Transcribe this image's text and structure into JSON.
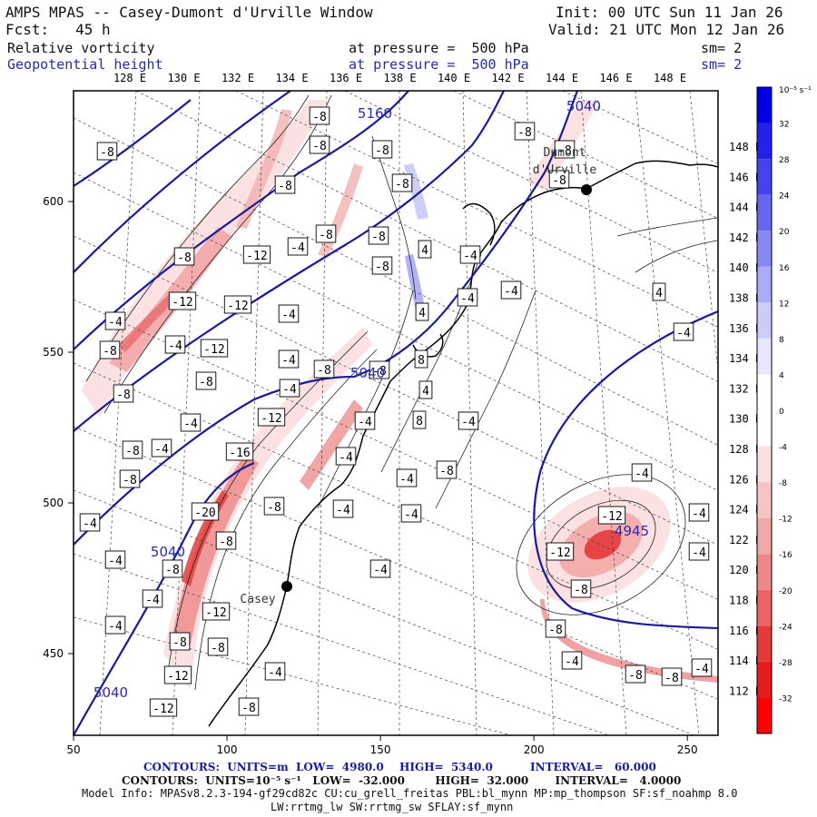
{
  "header": {
    "title": "AMPS MPAS -- Casey-Dumont d'Urville Window",
    "forecast": "Fcst:   45 h",
    "init": "Init: 00 UTC Sun 11 Jan 26",
    "valid": "Valid: 21 UTC Mon 12 Jan 26",
    "field1": {
      "name": "Relative vorticity",
      "level": "at pressure =  500 hPa",
      "smooth": "sm= 2"
    },
    "field2": {
      "name": "Geopotential height",
      "level": "at pressure =  500 hPa",
      "smooth": "sm= 2"
    }
  },
  "axes": {
    "x_ticks": [
      "50",
      "100",
      "150",
      "200",
      "250"
    ],
    "y_ticks": [
      "600",
      "550",
      "500",
      "450"
    ],
    "top_lon_labels": [
      "128 E",
      "130 E",
      "132 E",
      "134 E",
      "136 E",
      "138 E",
      "140 E",
      "142 E",
      "144 E",
      "146 E",
      "148 E"
    ],
    "right_lon_labels": [
      "148 E",
      "146 E",
      "144 E",
      "142 E",
      "140 E",
      "138 E",
      "136 E",
      "134 E",
      "132 E",
      "130 E",
      "128 E",
      "126 E",
      "124 E",
      "122 E",
      "120 E",
      "118 E",
      "116 E",
      "114 E",
      "112 E"
    ]
  },
  "colorbar": {
    "unit": "10⁻⁵ s⁻¹",
    "labels": [
      "32",
      "28",
      "24",
      "20",
      "16",
      "12",
      "8",
      "4",
      "0",
      "-4",
      "-8",
      "-12",
      "-16",
      "-20",
      "-24",
      "-28",
      "-32"
    ],
    "colors": [
      "#0000e6",
      "#2222ea",
      "#4444ee",
      "#6666f0",
      "#8888f4",
      "#aaaaf6",
      "#ccccfa",
      "#e6e6fc",
      "#ffffff",
      "#ffffff",
      "#fbe0e0",
      "#f7c4c4",
      "#f3a8a8",
      "#ee8888",
      "#ea6464",
      "#e63a3a",
      "#e41c1c",
      "#ff0000"
    ]
  },
  "places": [
    {
      "name": "Dumont d'Urville",
      "label_lines": [
        "Dumont",
        "d'Urville"
      ]
    },
    {
      "name": "Casey",
      "label_lines": [
        "Casey"
      ]
    }
  ],
  "height_labels": [
    "5160",
    "5040",
    "5040",
    "5040",
    "5040",
    "4945"
  ],
  "vorticity_labels": [
    "-4",
    "-8",
    "-12",
    "-16",
    "-20",
    "4",
    "8"
  ],
  "footer": {
    "line1_a": "CONTOURS:  UNITS=m  LOW=  4980.0",
    "line1_b": "HIGH=  5340.0",
    "line1_c": "INTERVAL=   60.000",
    "line2": "CONTOURS:  UNITS=10⁻⁵ s⁻¹   LOW=  -32.000        HIGH=  32.000       INTERVAL=   4.0000",
    "line3": "Model Info: MPASv8.2.3-194-gf29cd82c CU:cu_grell_freitas PBL:bl_mynn MP:mp_thompson SF:sf_noahmp 8.0",
    "line4": "LW:rrtmg_lw SW:rrtmg_sw SFLAY:sf_mynn"
  }
}
